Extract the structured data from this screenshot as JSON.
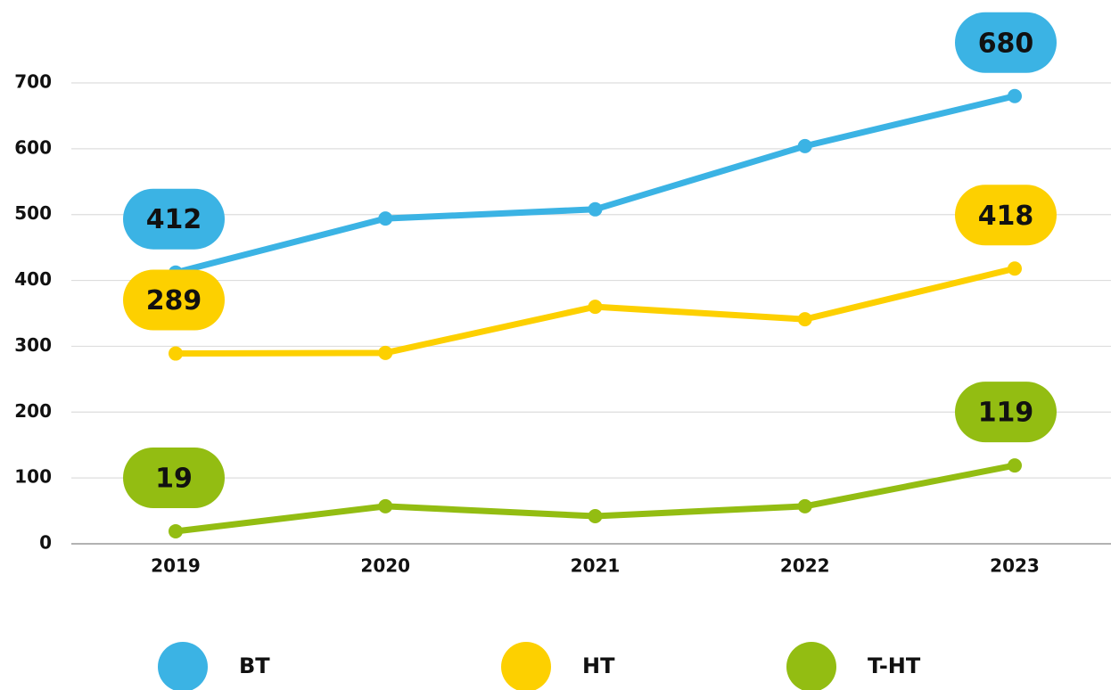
{
  "chart_data": {
    "type": "line",
    "categories": [
      "2019",
      "2020",
      "2021",
      "2022",
      "2023"
    ],
    "series": [
      {
        "name": "BT",
        "color": "#3bb3e4",
        "values": [
          412,
          494,
          508,
          604,
          680
        ]
      },
      {
        "name": "HT",
        "color": "#fdd000",
        "values": [
          289,
          290,
          360,
          341,
          418
        ]
      },
      {
        "name": "T-HT",
        "color": "#93bd12",
        "values": [
          19,
          57,
          42,
          57,
          119
        ]
      }
    ],
    "ylim": [
      0,
      700
    ],
    "yticks": [
      0,
      100,
      200,
      300,
      400,
      500,
      600,
      700
    ],
    "grid": true,
    "data_labels": "first_last",
    "legend": "bottom"
  }
}
